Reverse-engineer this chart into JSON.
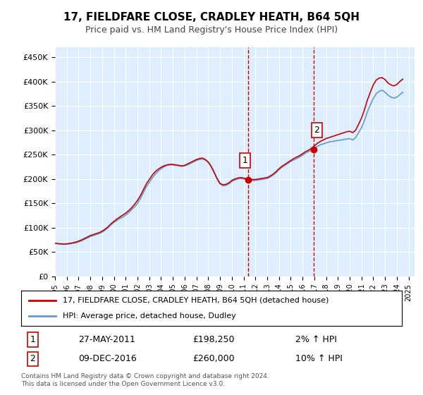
{
  "title": "17, FIELDFARE CLOSE, CRADLEY HEATH, B64 5QH",
  "subtitle": "Price paid vs. HM Land Registry's House Price Index (HPI)",
  "background_color": "#ffffff",
  "plot_bg_color": "#ddeeff",
  "ylabel_ticks": [
    "£0",
    "£50K",
    "£100K",
    "£150K",
    "£200K",
    "£250K",
    "£300K",
    "£350K",
    "£400K",
    "£450K"
  ],
  "ytick_values": [
    0,
    50000,
    100000,
    150000,
    200000,
    250000,
    300000,
    350000,
    400000,
    450000
  ],
  "ylim": [
    0,
    470000
  ],
  "xlim_start": 1995.0,
  "xlim_end": 2025.5,
  "hpi_color": "#6699cc",
  "price_color": "#cc0000",
  "vline_color": "#cc0000",
  "vline_style": "--",
  "transaction1_x": 2011.4,
  "transaction1_y": 198250,
  "transaction1_label": "1",
  "transaction1_date": "27-MAY-2011",
  "transaction1_price": "£198,250",
  "transaction1_hpi": "2% ↑ HPI",
  "transaction2_x": 2016.92,
  "transaction2_y": 260000,
  "transaction2_label": "2",
  "transaction2_date": "09-DEC-2016",
  "transaction2_price": "£260,000",
  "transaction2_hpi": "10% ↑ HPI",
  "legend_line1": "17, FIELDFARE CLOSE, CRADLEY HEATH, B64 5QH (detached house)",
  "legend_line2": "HPI: Average price, detached house, Dudley",
  "footer": "Contains HM Land Registry data © Crown copyright and database right 2024.\nThis data is licensed under the Open Government Licence v3.0.",
  "hpi_data": {
    "years": [
      1995.0,
      1995.25,
      1995.5,
      1995.75,
      1996.0,
      1996.25,
      1996.5,
      1996.75,
      1997.0,
      1997.25,
      1997.5,
      1997.75,
      1998.0,
      1998.25,
      1998.5,
      1998.75,
      1999.0,
      1999.25,
      1999.5,
      1999.75,
      2000.0,
      2000.25,
      2000.5,
      2000.75,
      2001.0,
      2001.25,
      2001.5,
      2001.75,
      2002.0,
      2002.25,
      2002.5,
      2002.75,
      2003.0,
      2003.25,
      2003.5,
      2003.75,
      2004.0,
      2004.25,
      2004.5,
      2004.75,
      2005.0,
      2005.25,
      2005.5,
      2005.75,
      2006.0,
      2006.25,
      2006.5,
      2006.75,
      2007.0,
      2007.25,
      2007.5,
      2007.75,
      2008.0,
      2008.25,
      2008.5,
      2008.75,
      2009.0,
      2009.25,
      2009.5,
      2009.75,
      2010.0,
      2010.25,
      2010.5,
      2010.75,
      2011.0,
      2011.25,
      2011.5,
      2011.75,
      2012.0,
      2012.25,
      2012.5,
      2012.75,
      2013.0,
      2013.25,
      2013.5,
      2013.75,
      2014.0,
      2014.25,
      2014.5,
      2014.75,
      2015.0,
      2015.25,
      2015.5,
      2015.75,
      2016.0,
      2016.25,
      2016.5,
      2016.75,
      2017.0,
      2017.25,
      2017.5,
      2017.75,
      2018.0,
      2018.25,
      2018.5,
      2018.75,
      2019.0,
      2019.25,
      2019.5,
      2019.75,
      2020.0,
      2020.25,
      2020.5,
      2020.75,
      2021.0,
      2021.25,
      2021.5,
      2021.75,
      2022.0,
      2022.25,
      2022.5,
      2022.75,
      2023.0,
      2023.25,
      2023.5,
      2023.75,
      2024.0,
      2024.25,
      2024.5
    ],
    "values": [
      68000,
      67000,
      66500,
      66000,
      66500,
      67000,
      68000,
      69000,
      71000,
      73000,
      76000,
      79000,
      82000,
      84000,
      86000,
      88000,
      91000,
      95000,
      100000,
      106000,
      111000,
      115000,
      119000,
      122000,
      126000,
      131000,
      137000,
      143000,
      150000,
      160000,
      172000,
      184000,
      193000,
      202000,
      210000,
      216000,
      221000,
      225000,
      228000,
      229000,
      229000,
      228000,
      227000,
      226000,
      227000,
      229000,
      232000,
      235000,
      238000,
      240000,
      241000,
      239000,
      234000,
      225000,
      213000,
      200000,
      190000,
      186000,
      187000,
      190000,
      195000,
      198000,
      200000,
      201000,
      200000,
      199000,
      198000,
      197000,
      197000,
      198000,
      199000,
      200000,
      201000,
      204000,
      208000,
      213000,
      219000,
      224000,
      228000,
      232000,
      236000,
      239000,
      242000,
      245000,
      249000,
      253000,
      256000,
      259000,
      263000,
      267000,
      270000,
      272000,
      274000,
      276000,
      277000,
      278000,
      279000,
      280000,
      281000,
      282000,
      283000,
      280000,
      285000,
      295000,
      305000,
      320000,
      338000,
      352000,
      365000,
      375000,
      380000,
      382000,
      378000,
      372000,
      368000,
      366000,
      368000,
      373000,
      378000
    ]
  },
  "price_data": {
    "years": [
      1995.0,
      1995.25,
      1995.5,
      1995.75,
      1996.0,
      1996.25,
      1996.5,
      1996.75,
      1997.0,
      1997.25,
      1997.5,
      1997.75,
      1998.0,
      1998.25,
      1998.5,
      1998.75,
      1999.0,
      1999.25,
      1999.5,
      1999.75,
      2000.0,
      2000.25,
      2000.5,
      2000.75,
      2001.0,
      2001.25,
      2001.5,
      2001.75,
      2002.0,
      2002.25,
      2002.5,
      2002.75,
      2003.0,
      2003.25,
      2003.5,
      2003.75,
      2004.0,
      2004.25,
      2004.5,
      2004.75,
      2005.0,
      2005.25,
      2005.5,
      2005.75,
      2006.0,
      2006.25,
      2006.5,
      2006.75,
      2007.0,
      2007.25,
      2007.5,
      2007.75,
      2008.0,
      2008.25,
      2008.5,
      2008.75,
      2009.0,
      2009.25,
      2009.5,
      2009.75,
      2010.0,
      2010.25,
      2010.5,
      2010.75,
      2011.0,
      2011.25,
      2011.5,
      2011.75,
      2012.0,
      2012.25,
      2012.5,
      2012.75,
      2013.0,
      2013.25,
      2013.5,
      2013.75,
      2014.0,
      2014.25,
      2014.5,
      2014.75,
      2015.0,
      2015.25,
      2015.5,
      2015.75,
      2016.0,
      2016.25,
      2016.5,
      2016.75,
      2017.0,
      2017.25,
      2017.5,
      2017.75,
      2018.0,
      2018.25,
      2018.5,
      2018.75,
      2019.0,
      2019.25,
      2019.5,
      2019.75,
      2020.0,
      2020.25,
      2020.5,
      2020.75,
      2021.0,
      2021.25,
      2021.5,
      2021.75,
      2022.0,
      2022.25,
      2022.5,
      2022.75,
      2023.0,
      2023.25,
      2023.5,
      2023.75,
      2024.0,
      2024.25,
      2024.5
    ],
    "values": [
      68500,
      67500,
      67000,
      66500,
      67000,
      68000,
      69000,
      70500,
      72500,
      75000,
      78000,
      81000,
      84000,
      86000,
      88000,
      90000,
      93000,
      97000,
      102000,
      108000,
      113000,
      118000,
      122000,
      126000,
      130000,
      135000,
      141000,
      148000,
      156000,
      166000,
      178000,
      190000,
      199000,
      208000,
      215000,
      220000,
      224000,
      227000,
      229000,
      230000,
      230000,
      229000,
      228000,
      227000,
      228000,
      231000,
      234000,
      237000,
      240000,
      242000,
      243000,
      240000,
      235000,
      226000,
      214000,
      201000,
      191000,
      188000,
      189000,
      192000,
      197000,
      200000,
      202000,
      203000,
      202000,
      200000,
      199000,
      199000,
      199000,
      200000,
      201000,
      202000,
      203000,
      206000,
      210000,
      215000,
      221000,
      226000,
      230000,
      234000,
      238000,
      242000,
      245000,
      248000,
      252000,
      256000,
      259000,
      263000,
      268000,
      273000,
      277000,
      280000,
      283000,
      285000,
      287000,
      289000,
      291000,
      293000,
      295000,
      297000,
      298000,
      295000,
      300000,
      312000,
      325000,
      342000,
      362000,
      378000,
      393000,
      403000,
      407000,
      408000,
      404000,
      397000,
      393000,
      391000,
      394000,
      400000,
      405000
    ]
  }
}
